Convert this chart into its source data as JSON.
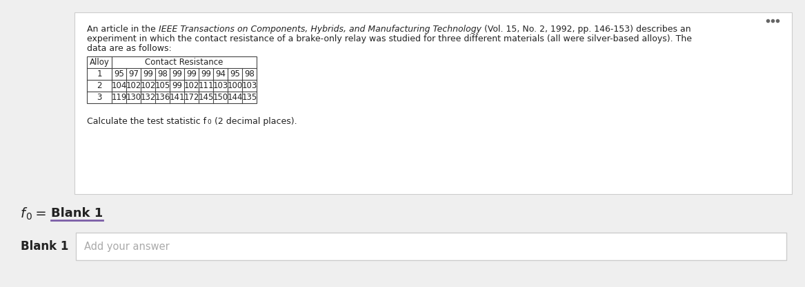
{
  "alloy1": [
    95,
    97,
    99,
    98,
    99,
    99,
    99,
    94,
    95,
    98
  ],
  "alloy2": [
    104,
    102,
    102,
    105,
    99,
    102,
    111,
    103,
    100,
    103
  ],
  "alloy3": [
    119,
    130,
    132,
    136,
    141,
    172,
    145,
    150,
    144,
    135
  ],
  "table_header_col1": "Alloy",
  "table_header_col2": "Contact Resistance",
  "add_answer": "Add your answer",
  "blank_label": "Blank 1",
  "bg_color": "#efefef",
  "card_color": "#ffffff",
  "table_border_color": "#444444",
  "text_color": "#222222",
  "blank_underline_color": "#7b5ea7",
  "input_border_color": "#cccccc",
  "placeholder_color": "#aaaaaa",
  "dots_color": "#666666",
  "font_size_body": 9.0,
  "font_size_table": 8.5,
  "font_size_fo": 14,
  "font_size_blank": 13,
  "font_size_answer_label": 12
}
